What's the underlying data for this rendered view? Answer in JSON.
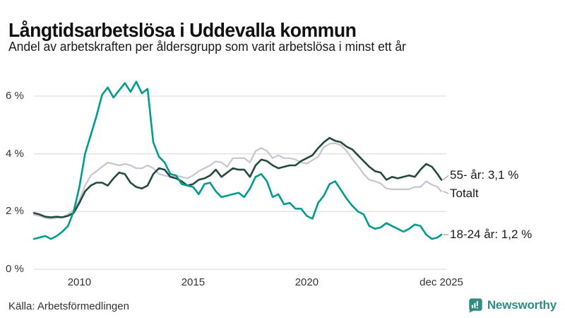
{
  "header": {
    "title": "Långtidsarbetslösa i Uddevalla kommun",
    "subtitle": "Andel av arbetskraften per åldersgrupp som varit arbetslösa i minst ett år"
  },
  "footer": {
    "source": "Källa: Arbetsförmedlingen",
    "brand": "Newsworthy",
    "brand_color": "#2e8c84"
  },
  "chart_data": {
    "type": "line",
    "title": "Långtidsarbetslösa i Uddevalla kommun",
    "subtitle": "Andel av arbetskraften per åldersgrupp som varit arbetslösa i minst ett år",
    "ylabel": "",
    "xlabel": "",
    "x_unit": "year (decimal, monthly share of labour force unemployed ≥ 1 year)",
    "ylim": [
      0,
      6.6
    ],
    "xlim": [
      2008,
      2025.92
    ],
    "grid": "horizontal",
    "legend": "end-of-line-labels",
    "yticks": [
      {
        "value": 0,
        "label": "0 %"
      },
      {
        "value": 2,
        "label": "2 %"
      },
      {
        "value": 4,
        "label": "4 %"
      },
      {
        "value": 6,
        "label": "6 %"
      }
    ],
    "xticks": [
      {
        "value": 2010,
        "label": "2010"
      },
      {
        "value": 2015,
        "label": "2015"
      },
      {
        "value": 2020,
        "label": "2020"
      },
      {
        "value": 2025.92,
        "label": "dec 2025"
      }
    ],
    "x": [
      2008,
      2008.25,
      2008.5,
      2008.75,
      2009,
      2009.25,
      2009.5,
      2009.75,
      2010,
      2010.25,
      2010.5,
      2010.75,
      2011,
      2011.25,
      2011.5,
      2011.75,
      2012,
      2012.25,
      2012.5,
      2012.75,
      2013,
      2013.25,
      2013.5,
      2013.75,
      2014,
      2014.25,
      2014.5,
      2014.75,
      2015,
      2015.25,
      2015.5,
      2015.75,
      2016,
      2016.25,
      2016.5,
      2016.75,
      2017,
      2017.25,
      2017.5,
      2017.75,
      2018,
      2018.25,
      2018.5,
      2018.75,
      2019,
      2019.25,
      2019.5,
      2019.75,
      2020,
      2020.25,
      2020.5,
      2020.75,
      2021,
      2021.25,
      2021.5,
      2021.75,
      2022,
      2022.25,
      2022.5,
      2022.75,
      2023,
      2023.25,
      2023.5,
      2023.75,
      2024,
      2024.25,
      2024.5,
      2024.75,
      2025,
      2025.25,
      2025.5,
      2025.75,
      2025.92
    ],
    "series": [
      {
        "name": "Totalt",
        "color": "#c7c4d4",
        "stroke_width": 2.2,
        "values": [
          1.88,
          1.85,
          1.78,
          1.75,
          1.78,
          1.8,
          1.9,
          2.05,
          2.4,
          2.9,
          3.25,
          3.4,
          3.55,
          3.7,
          3.65,
          3.6,
          3.65,
          3.6,
          3.5,
          3.5,
          3.6,
          3.5,
          3.3,
          3.25,
          3.2,
          3.25,
          3.2,
          3.15,
          3.25,
          3.4,
          3.5,
          3.6,
          3.74,
          3.7,
          3.55,
          3.85,
          3.85,
          3.85,
          3.7,
          4.1,
          4.2,
          4.1,
          3.85,
          3.95,
          3.85,
          3.85,
          3.8,
          3.7,
          3.66,
          3.78,
          3.9,
          4.23,
          4.35,
          4.37,
          4.3,
          4.1,
          3.82,
          3.58,
          3.3,
          3.1,
          3.05,
          2.97,
          2.8,
          2.77,
          2.77,
          2.77,
          2.77,
          2.85,
          2.85,
          3.05,
          2.93,
          2.85,
          2.7
        ]
      },
      {
        "name": "55- år",
        "color": "#24493e",
        "stroke_width": 2.6,
        "values": [
          1.95,
          1.9,
          1.82,
          1.8,
          1.82,
          1.8,
          1.85,
          1.95,
          2.3,
          2.7,
          2.9,
          3.0,
          3.0,
          2.9,
          3.15,
          3.35,
          3.3,
          3.0,
          2.85,
          2.8,
          2.9,
          3.3,
          3.5,
          3.45,
          3.2,
          3.15,
          3.05,
          2.9,
          2.95,
          3.1,
          3.15,
          3.25,
          3.45,
          3.2,
          3.35,
          3.5,
          3.45,
          3.45,
          3.2,
          3.6,
          3.8,
          3.75,
          3.6,
          3.5,
          3.55,
          3.6,
          3.6,
          3.75,
          3.85,
          3.95,
          4.2,
          4.4,
          4.55,
          4.45,
          4.4,
          4.25,
          4.15,
          3.95,
          3.75,
          3.55,
          3.4,
          3.35,
          3.1,
          3.2,
          3.15,
          3.2,
          3.25,
          3.2,
          3.45,
          3.65,
          3.55,
          3.3,
          3.1
        ]
      },
      {
        "name": "18-24 år",
        "color": "#009b8c",
        "stroke_width": 2.6,
        "values": [
          1.05,
          1.1,
          1.15,
          1.05,
          1.15,
          1.3,
          1.5,
          2.0,
          2.85,
          4.0,
          4.65,
          5.3,
          6.05,
          6.3,
          5.95,
          6.2,
          6.45,
          6.15,
          6.5,
          6.1,
          6.25,
          4.4,
          3.9,
          3.7,
          3.3,
          3.25,
          2.95,
          2.9,
          2.85,
          2.6,
          2.95,
          3.0,
          2.7,
          2.5,
          2.55,
          2.6,
          2.65,
          2.5,
          2.8,
          3.2,
          3.3,
          3.05,
          2.5,
          2.6,
          2.25,
          2.3,
          2.1,
          2.1,
          1.85,
          1.75,
          2.3,
          2.55,
          2.95,
          3.05,
          2.75,
          2.45,
          2.2,
          2.0,
          1.9,
          1.5,
          1.4,
          1.45,
          1.6,
          1.5,
          1.4,
          1.3,
          1.4,
          1.55,
          1.5,
          1.2,
          1.05,
          1.1,
          1.2
        ]
      }
    ],
    "annotations": [
      {
        "text": "55- år: 3,1 %",
        "series": "55- år",
        "end_value": 3.1
      },
      {
        "text": "Totalt",
        "series": "Totalt",
        "end_value": 2.7
      },
      {
        "text": "18-24 år: 1,2 %",
        "series": "18-24 år",
        "end_value": 1.2
      }
    ]
  }
}
